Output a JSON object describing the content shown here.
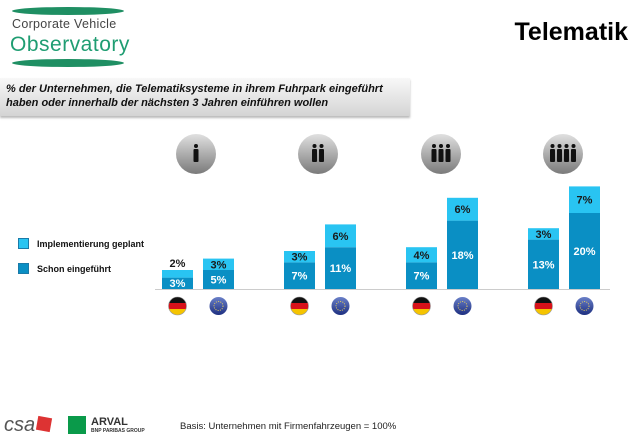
{
  "logo": {
    "line1": "Corporate Vehicle",
    "line2": "Observatory"
  },
  "title": "Telematik",
  "subtitle": "% der Unternehmen, die Telematiksysteme  in ihrem Fuhrpark eingeführt haben oder innerhalb der nächsten 3 Jahren einführen wollen",
  "footer": {
    "basis": "Basis: Unternehmen mit Firmenfahrzeugen = 100%",
    "logos": [
      "csa",
      "ARVAL BNP PARIBAS GROUP"
    ]
  },
  "colors": {
    "implemented": "#0a8fc4",
    "planned": "#29c4f2",
    "icon_circle": "#9a9a9a"
  },
  "chart_data": {
    "type": "bar",
    "stacked": true,
    "unit": "%",
    "groups": [
      {
        "icon": "one-person-icon",
        "bars": [
          {
            "country": "germany-flag-icon",
            "implemented": 3,
            "planned": 2
          },
          {
            "country": "eu-flag-icon",
            "implemented": 5,
            "planned": 3
          }
        ]
      },
      {
        "icon": "two-persons-icon",
        "bars": [
          {
            "country": "germany-flag-icon",
            "implemented": 7,
            "planned": 3
          },
          {
            "country": "eu-flag-icon",
            "implemented": 11,
            "planned": 6
          }
        ]
      },
      {
        "icon": "three-persons-icon",
        "bars": [
          {
            "country": "germany-flag-icon",
            "implemented": 7,
            "planned": 4
          },
          {
            "country": "eu-flag-icon",
            "implemented": 18,
            "planned": 6
          }
        ]
      },
      {
        "icon": "four-persons-icon",
        "bars": [
          {
            "country": "germany-flag-icon",
            "implemented": 13,
            "planned": 3
          },
          {
            "country": "eu-flag-icon",
            "implemented": 20,
            "planned": 7
          }
        ]
      }
    ],
    "legend": [
      {
        "name": "Implementierung geplant",
        "key": "planned"
      },
      {
        "name": "Schon eingeführt",
        "key": "implemented"
      }
    ],
    "legend_placement": "left",
    "grid": false
  }
}
